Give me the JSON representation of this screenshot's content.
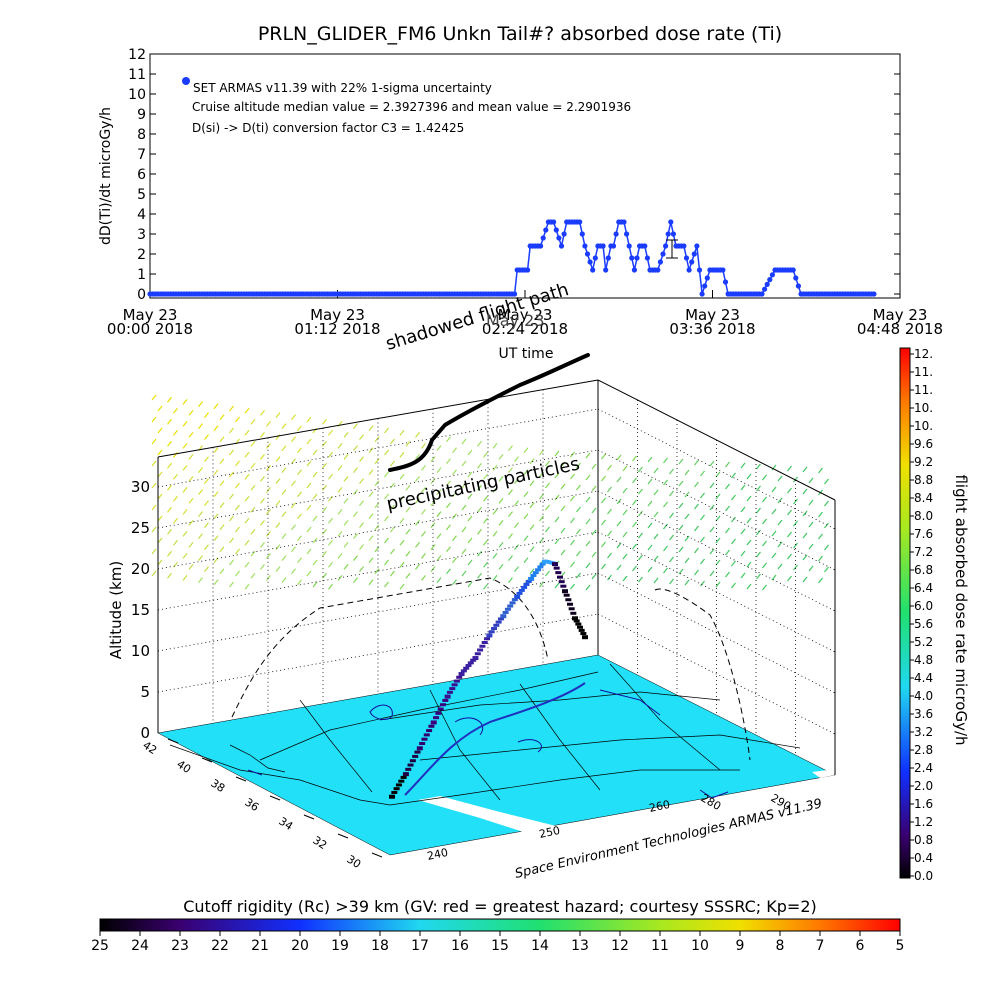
{
  "chart_data": [
    {
      "type": "line",
      "title": "PRLN_GLIDER_FM6 Unkn Tail#? absorbed dose rate (Ti)",
      "xlabel": "UT time",
      "ylabel": "dD(Ti)/dt microGy/h",
      "ylim": [
        0,
        12
      ],
      "yticks": [
        "0",
        "1",
        "2",
        "3",
        "4",
        "5",
        "6",
        "7",
        "8",
        "9",
        "10",
        "11",
        "12"
      ],
      "xlim_minutes": [
        0,
        288
      ],
      "xticks": [
        {
          "minute": 0,
          "top": "May 23",
          "bottom": "00:00 2018"
        },
        {
          "minute": 72,
          "top": "May 23",
          "bottom": "01:12 2018"
        },
        {
          "minute": 144,
          "top": "May 23",
          "bottom": "02:24 2018"
        },
        {
          "minute": 216,
          "top": "May 23",
          "bottom": "03:36 2018"
        },
        {
          "minute": 288,
          "top": "May 23",
          "bottom": "04:48 2018"
        }
      ],
      "legend": "SET ARMAS v11.39 with 22% 1-sigma uncertainty",
      "annotations": [
        "Cruise altitude median value = 2.3927396 and mean value = 2.2901936",
        "D(si) -> D(ti) conversion factor C3 = 1.42425"
      ],
      "series": [
        {
          "color": "#1a3cff",
          "x": [
            0,
            10,
            20,
            30,
            40,
            50,
            60,
            70,
            80,
            90,
            100,
            110,
            120,
            130,
            140,
            141,
            142,
            145,
            146,
            150,
            153,
            155,
            158,
            160,
            163,
            165,
            167,
            170,
            172,
            174,
            175,
            177,
            178,
            180,
            182,
            184,
            186,
            188,
            190,
            192,
            195,
            198,
            200,
            202,
            205,
            207,
            210,
            212,
            215,
            218,
            220,
            222,
            225,
            230,
            232,
            235,
            240,
            245,
            247,
            250,
            252,
            257,
            260,
            262,
            265,
            268,
            270,
            273,
            275,
            278
          ],
          "y": [
            0,
            0,
            0,
            0,
            0,
            0,
            0,
            0,
            0,
            0,
            0,
            0,
            0,
            0,
            0,
            1.2,
            1.2,
            1.2,
            2.4,
            2.4,
            3.6,
            3.6,
            2.4,
            3.6,
            3.6,
            3.6,
            2.4,
            1.2,
            2.4,
            2.4,
            1.2,
            2.4,
            2.4,
            3.6,
            3.6,
            2.4,
            1.2,
            2.4,
            2.4,
            1.2,
            1.2,
            2.4,
            3.6,
            2.4,
            2.4,
            1.2,
            2.4,
            0,
            1.2,
            1.2,
            1.2,
            0,
            0,
            0,
            0,
            0,
            1.2,
            1.2,
            1.2,
            0,
            0,
            0,
            0,
            0,
            0,
            0,
            0,
            0,
            0,
            0
          ]
        }
      ]
    },
    {
      "type": "scatter",
      "title": "",
      "zlabel": "Altitude (km)",
      "zticks": [
        "0",
        "5",
        "10",
        "15",
        "20",
        "25",
        "30"
      ],
      "lat_ticks": [
        "42",
        "40",
        "38",
        "36",
        "34",
        "32",
        "30"
      ],
      "lon_ticks": [
        "240",
        "250",
        "260"
      ],
      "lon_side_ticks": [
        "240",
        "280",
        "290"
      ],
      "annotations": [
        "shadowed flight path",
        "precipitating particles",
        "May 23"
      ],
      "credit": "Space Environment Technologies ARMAS v11.39",
      "flight_path_altitude_km": [
        0.5,
        2,
        4,
        6,
        8,
        9.5,
        10,
        11.5,
        12.5,
        13.5,
        14.3,
        15,
        12,
        9,
        6,
        4
      ]
    },
    {
      "type": "heatmap",
      "title": "flight absorbed dose rate microGy/h",
      "colorbar_ticks": [
        "12.",
        "11.",
        "11.",
        "10.",
        "10.",
        "9.6",
        "9.2",
        "8.8",
        "8.4",
        "8.0",
        "7.6",
        "7.2",
        "6.8",
        "6.4",
        "6.0",
        "5.6",
        "5.2",
        "4.8",
        "4.4",
        "4.0",
        "3.6",
        "3.2",
        "2.8",
        "2.4",
        "2.0",
        "1.6",
        "1.2",
        "0.8",
        "0.4",
        "0.0"
      ]
    },
    {
      "type": "heatmap",
      "title": "Cutoff rigidity (Rc) >39 km (GV: red = greatest hazard; courtesy SSSRC; Kp=2)",
      "colorbar_ticks": [
        "25",
        "24",
        "23",
        "22",
        "21",
        "20",
        "19",
        "18",
        "17",
        "16",
        "15",
        "14",
        "13",
        "12",
        "11",
        "10",
        "9",
        "8",
        "7",
        "6",
        "5"
      ]
    }
  ],
  "colors": {
    "series": "#1a3cff",
    "ground": "#22e0f8",
    "flight_path": "#1010a0"
  }
}
